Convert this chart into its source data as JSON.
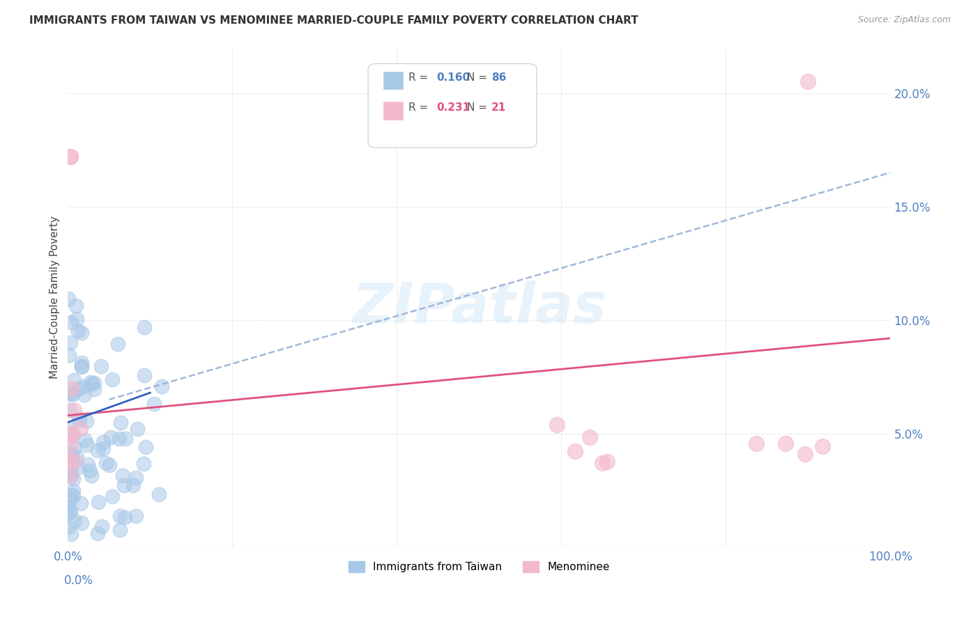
{
  "title": "IMMIGRANTS FROM TAIWAN VS MENOMINEE MARRIED-COUPLE FAMILY POVERTY CORRELATION CHART",
  "source": "Source: ZipAtlas.com",
  "ylabel": "Married-Couple Family Poverty",
  "watermark": "ZIPatlas",
  "legend_blue_R": "0.160",
  "legend_blue_N": "86",
  "legend_pink_R": "0.231",
  "legend_pink_N": "21",
  "xlim": [
    0,
    100
  ],
  "ylim": [
    0,
    22
  ],
  "xticks": [
    0,
    20,
    40,
    60,
    80,
    100
  ],
  "xticklabels": [
    "0.0%",
    "",
    "",
    "",
    "",
    "100.0%"
  ],
  "yticks_right": [
    5,
    10,
    15,
    20
  ],
  "yticklabels_right": [
    "5.0%",
    "10.0%",
    "15.0%",
    "20.0%"
  ],
  "blue_color": "#a8c8e8",
  "pink_color": "#f4b8cc",
  "blue_line_color": "#3060c0",
  "pink_line_color": "#e05080",
  "trend_dash_color": "#a0b8d8",
  "background_color": "#ffffff",
  "grid_color": "#e8e8e8",
  "tick_color": "#5080c0",
  "blue_regression_x0": 0,
  "blue_regression_x1": 10,
  "blue_regression_y0": 5.5,
  "blue_regression_y1": 6.8,
  "blue_trend_x0": 5,
  "blue_trend_x1": 100,
  "blue_trend_y0": 6.5,
  "blue_trend_y1": 16.5,
  "pink_trend_x0": 0,
  "pink_trend_x1": 100,
  "pink_trend_y0": 5.8,
  "pink_trend_y1": 9.2
}
